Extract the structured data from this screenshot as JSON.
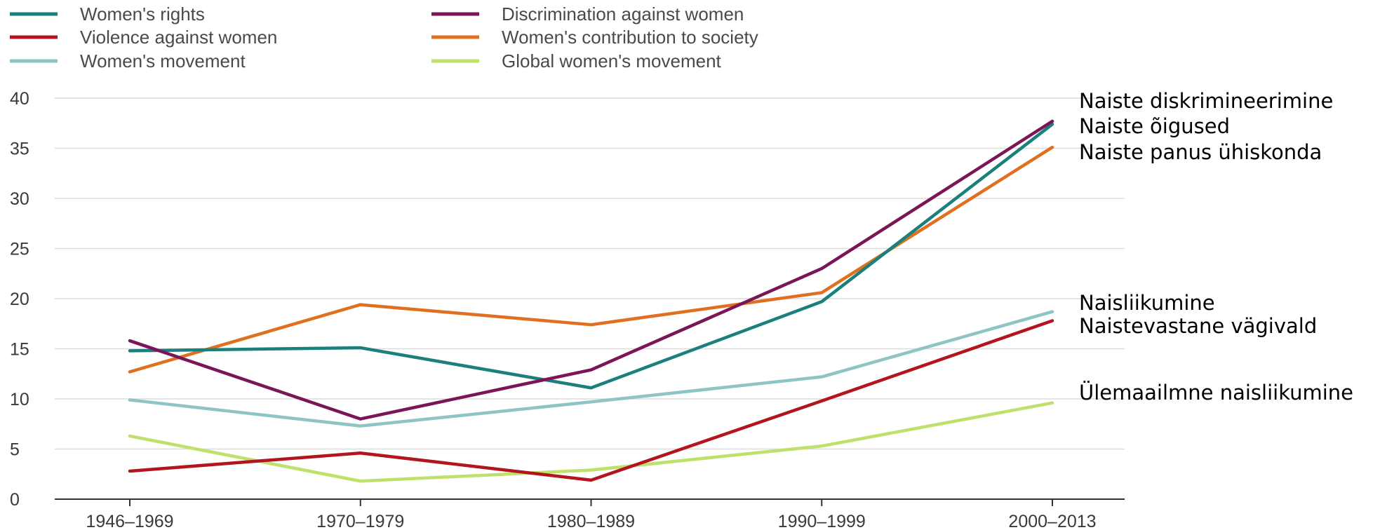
{
  "chart_data": {
    "type": "line",
    "categories": [
      "1946–1969",
      "1970–1979",
      "1980–1989",
      "1990–1999",
      "2000–2013"
    ],
    "ylim": [
      0,
      40
    ],
    "yticks": [
      "0",
      "5",
      "10",
      "15",
      "20",
      "25",
      "30",
      "35",
      "40"
    ],
    "grid": true,
    "legend_placement": "top-left",
    "series": [
      {
        "name": "Women's rights",
        "color": "#1b7f7b",
        "values": [
          14.8,
          15.1,
          11.1,
          19.7,
          37.4
        ]
      },
      {
        "name": "Discrimination against women",
        "color": "#7a1557",
        "values": [
          15.8,
          8.0,
          12.9,
          23.0,
          37.7
        ]
      },
      {
        "name": "Violence against women",
        "color": "#b3141e",
        "values": [
          2.8,
          4.6,
          1.9,
          9.8,
          17.8
        ]
      },
      {
        "name": "Women's contribution to society",
        "color": "#e07020",
        "values": [
          12.7,
          19.4,
          17.4,
          20.6,
          35.1
        ]
      },
      {
        "name": "Women's movement",
        "color": "#8ec4c4",
        "values": [
          9.9,
          7.3,
          9.7,
          12.2,
          18.7
        ]
      },
      {
        "name": "Global women's movement",
        "color": "#bfe06a",
        "values": [
          6.3,
          1.8,
          2.9,
          5.3,
          9.6
        ]
      }
    ],
    "end_labels": [
      "Naiste diskrimineerimine",
      "Naiste õigused",
      "Naiste panus ühiskonda",
      "Naisliikumine",
      "Naistevastane vägivald",
      "Ülemaailmne naisliikumine"
    ]
  }
}
